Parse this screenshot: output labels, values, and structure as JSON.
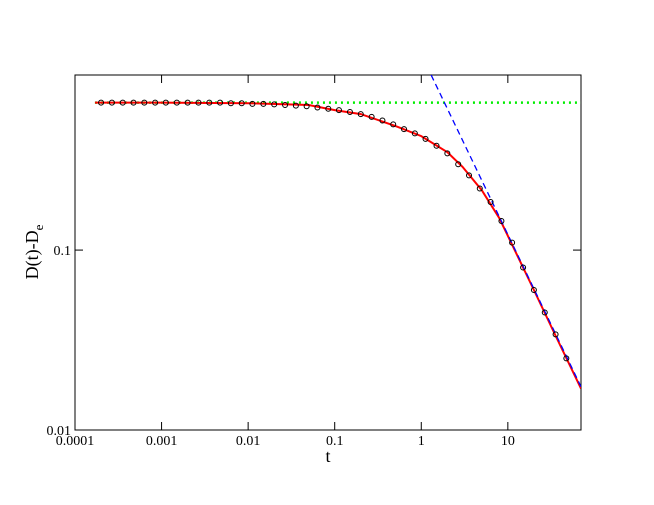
{
  "chart_data": {
    "type": "line",
    "xlabel": "t",
    "ylabel": "D(t)-D",
    "ylabel_sub": "e",
    "xscale": "log",
    "yscale": "log",
    "xlim": [
      0.0001,
      70
    ],
    "ylim": [
      0.01,
      0.94
    ],
    "xticks": [
      0.0001,
      0.001,
      0.01,
      0.1,
      1,
      10
    ],
    "yticks": [
      0.01,
      0.1
    ],
    "series": [
      {
        "style": "dotted",
        "color": "#00ee00",
        "x": [
          0.00017,
          70
        ],
        "values": [
          0.66,
          0.66
        ]
      },
      {
        "style": "solid",
        "color": "#ff0000",
        "x": [
          0.00017,
          0.001,
          0.01,
          0.05,
          0.1,
          0.2,
          0.5,
          1,
          2,
          3,
          5,
          8,
          12,
          20,
          35,
          70
        ],
        "values": [
          0.66,
          0.66,
          0.655,
          0.64,
          0.6,
          0.57,
          0.49,
          0.43,
          0.35,
          0.29,
          0.215,
          0.15,
          0.1,
          0.06,
          0.034,
          0.017
        ]
      },
      {
        "style": "dashed",
        "color": "#0000ff",
        "x": [
          1.3,
          70
        ],
        "values": [
          0.94,
          0.0174
        ]
      },
      {
        "style": "markers",
        "color": "#000000",
        "x": [
          0.0002,
          0.000267,
          0.000356,
          0.000474,
          0.000632,
          0.000843,
          0.00112,
          0.0015,
          0.002,
          0.00267,
          0.00356,
          0.00474,
          0.00632,
          0.00843,
          0.0112,
          0.015,
          0.02,
          0.0267,
          0.0356,
          0.0474,
          0.0632,
          0.0843,
          0.112,
          0.15,
          0.2,
          0.267,
          0.356,
          0.474,
          0.632,
          0.843,
          1.12,
          1.5,
          2,
          2.67,
          3.56,
          4.74,
          6.32,
          8.43,
          11.2,
          15,
          20,
          26.7,
          35.6,
          47.4
        ],
        "values": [
          0.66,
          0.66,
          0.66,
          0.66,
          0.66,
          0.66,
          0.66,
          0.66,
          0.66,
          0.66,
          0.66,
          0.66,
          0.655,
          0.655,
          0.65,
          0.65,
          0.645,
          0.64,
          0.635,
          0.63,
          0.62,
          0.61,
          0.6,
          0.585,
          0.57,
          0.55,
          0.525,
          0.5,
          0.47,
          0.445,
          0.415,
          0.38,
          0.345,
          0.3,
          0.26,
          0.22,
          0.185,
          0.145,
          0.11,
          0.08,
          0.06,
          0.045,
          0.034,
          0.025
        ]
      }
    ]
  }
}
